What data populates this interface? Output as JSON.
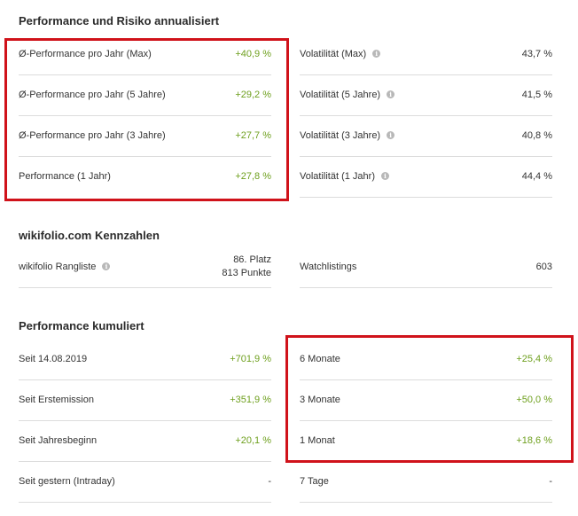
{
  "sections": {
    "annualized": {
      "title": "Performance und Risiko annualisiert",
      "left": [
        {
          "label": "Ø-Performance pro Jahr (Max)",
          "value": "+40,9 %"
        },
        {
          "label": "Ø-Performance pro Jahr (5 Jahre)",
          "value": "+29,2 %"
        },
        {
          "label": "Ø-Performance pro Jahr (3 Jahre)",
          "value": "+27,7 %"
        },
        {
          "label": "Performance (1 Jahr)",
          "value": "+27,8 %"
        }
      ],
      "right": [
        {
          "label": "Volatilität (Max)",
          "value": "43,7 %",
          "info_icon": "info-icon"
        },
        {
          "label": "Volatilität (5 Jahre)",
          "value": "41,5 %",
          "info_icon": "info-icon"
        },
        {
          "label": "Volatilität (3 Jahre)",
          "value": "40,8 %",
          "info_icon": "info-icon"
        },
        {
          "label": "Volatilität (1 Jahr)",
          "value": "44,4 %",
          "info_icon": "info-icon"
        }
      ]
    },
    "kennzahlen": {
      "title": "wikifolio.com Kennzahlen",
      "rangliste_label": "wikifolio Rangliste",
      "rangliste_platz": "86. Platz",
      "rangliste_punkte": "813 Punkte",
      "watchlistings_label": "Watchlistings",
      "watchlistings_value": "603"
    },
    "cumulative": {
      "title": "Performance kumuliert",
      "left": [
        {
          "label": "Seit 14.08.2019",
          "value": "+701,9 %"
        },
        {
          "label": "Seit Erstemission",
          "value": "+351,9 %"
        },
        {
          "label": "Seit Jahresbeginn",
          "value": "+20,1 %"
        },
        {
          "label": "Seit gestern (Intraday)",
          "value": "-"
        }
      ],
      "right": [
        {
          "label": "6 Monate",
          "value": "+25,4 %"
        },
        {
          "label": "3 Monate",
          "value": "+50,0 %"
        },
        {
          "label": "1 Monat",
          "value": "+18,6 %"
        },
        {
          "label": "7 Tage",
          "value": "-"
        }
      ]
    }
  },
  "colors": {
    "positive": "#6fa01f",
    "highlight_box": "#d0121a",
    "divider": "#dcdcdc"
  },
  "info_icon_glyph": "i"
}
